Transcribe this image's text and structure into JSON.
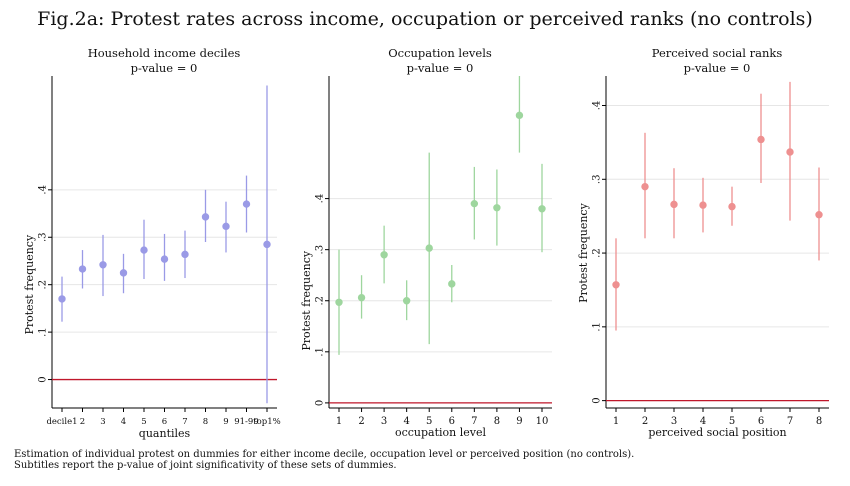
{
  "title": "Fig.2a: Protest rates across income, occupation or perceived ranks (no controls)",
  "notes": [
    "Estimation of individual protest on dummies for either income decile, occupation level or perceived position (no controls).",
    "Subtitles report the p-value of joint significativity of these sets of dummies."
  ],
  "colors": {
    "reference_line": "#c0172b",
    "grid": "#e6e6e6",
    "axis": "#000000"
  },
  "chart_data": [
    {
      "type": "scatter",
      "title": "Household income deciles",
      "subtitle": "p-value = 0",
      "xlabel": "quantiles",
      "ylabel": "Protest frequency",
      "color": "#9a9ae6",
      "categories": [
        "decile1",
        "2",
        "3",
        "4",
        "5",
        "6",
        "7",
        "8",
        "9",
        "91-99",
        "top1%"
      ],
      "values": [
        0.17,
        0.233,
        0.242,
        0.225,
        0.273,
        0.254,
        0.264,
        0.343,
        0.323,
        0.37,
        0.285
      ],
      "ci_low": [
        0.122,
        0.192,
        0.176,
        0.182,
        0.212,
        0.208,
        0.214,
        0.29,
        0.268,
        0.31,
        -0.05
      ],
      "ci_high": [
        0.217,
        0.273,
        0.305,
        0.265,
        0.337,
        0.307,
        0.314,
        0.4,
        0.375,
        0.43,
        0.62
      ],
      "yticks": [
        0,
        0.1,
        0.2,
        0.3,
        0.4
      ],
      "yticklabels": [
        "0",
        ".1",
        ".2",
        ".3",
        ".4"
      ],
      "ylim": [
        -0.06,
        0.64
      ],
      "reference_y": 0,
      "grid": true,
      "legend": "none"
    },
    {
      "type": "scatter",
      "title": "Occupation levels",
      "subtitle": "p-value = 0",
      "xlabel": "occupation level",
      "ylabel": "Protest frequency",
      "color": "#9ed69e",
      "categories": [
        "1",
        "2",
        "3",
        "4",
        "5",
        "6",
        "7",
        "8",
        "9",
        "10"
      ],
      "values": [
        0.197,
        0.206,
        0.29,
        0.2,
        0.303,
        0.233,
        0.39,
        0.382,
        0.563,
        0.38
      ],
      "ci_low": [
        0.094,
        0.165,
        0.234,
        0.162,
        0.115,
        0.197,
        0.32,
        0.308,
        0.49,
        0.295
      ],
      "ci_high": [
        0.3,
        0.25,
        0.347,
        0.24,
        0.49,
        0.27,
        0.462,
        0.457,
        0.64,
        0.468
      ],
      "yticks": [
        0,
        0.1,
        0.2,
        0.3,
        0.4
      ],
      "yticklabels": [
        "0",
        ".1",
        ".2",
        ".3",
        ".4"
      ],
      "ylim": [
        -0.01,
        0.64
      ],
      "reference_y": 0,
      "grid": true,
      "legend": "none"
    },
    {
      "type": "scatter",
      "title": "Perceived social ranks",
      "subtitle": "p-value = 0",
      "xlabel": "perceived social position",
      "ylabel": "Protest frequency",
      "color": "#ee9090",
      "categories": [
        "1",
        "2",
        "3",
        "4",
        "5",
        "6",
        "7",
        "8"
      ],
      "values": [
        0.157,
        0.29,
        0.266,
        0.265,
        0.263,
        0.354,
        0.337,
        0.252
      ],
      "ci_low": [
        0.095,
        0.22,
        0.22,
        0.228,
        0.237,
        0.295,
        0.244,
        0.19
      ],
      "ci_high": [
        0.22,
        0.363,
        0.315,
        0.302,
        0.29,
        0.416,
        0.432,
        0.316
      ],
      "yticks": [
        0,
        0.1,
        0.2,
        0.3,
        0.4
      ],
      "yticklabels": [
        "0",
        ".1",
        ".2",
        ".3",
        ".4"
      ],
      "ylim": [
        -0.01,
        0.44
      ],
      "reference_y": 0,
      "grid": true,
      "legend": "none"
    }
  ]
}
